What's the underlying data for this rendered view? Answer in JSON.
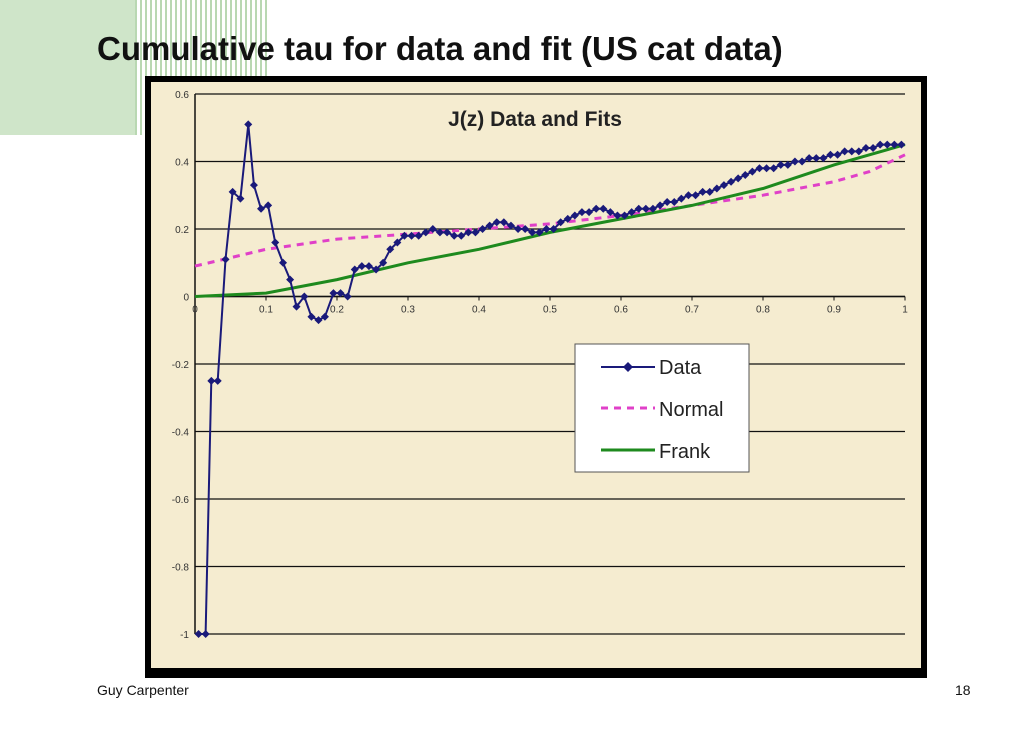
{
  "slide": {
    "title": "Cumulative tau for data and fit (US cat data)",
    "footer_left": "Guy Carpenter",
    "page_number": "18"
  },
  "colors": {
    "deco_green": "#cfe5c9",
    "plot_background": "#f5ecd0",
    "frame": "#000000",
    "data_series": "#1a1a7a",
    "normal_series": "#e040c8",
    "frank_series": "#1e8a1e"
  },
  "chart_data": {
    "type": "line",
    "title": "J(z) Data and Fits",
    "xlabel": "",
    "ylabel": "",
    "xlim": [
      0,
      1
    ],
    "ylim": [
      -1,
      0.6
    ],
    "xticks": [
      0,
      0.1,
      0.2,
      0.3,
      0.4,
      0.5,
      0.6,
      0.7,
      0.8,
      0.9,
      1
    ],
    "xtick_labels": [
      "0",
      "0.1",
      "0.2",
      "0.3",
      "0.4",
      "0.5",
      "0.6",
      "0.7",
      "0.8",
      "0.9",
      "1"
    ],
    "yticks": [
      0.6,
      0.4,
      0.2,
      0,
      -0.2,
      -0.4,
      -0.6,
      -0.8,
      -1
    ],
    "ytick_labels": [
      "0.6",
      "0.4",
      "0.2",
      "0",
      "-0.2",
      "-0.4",
      "-0.6",
      "-0.8",
      "-1"
    ],
    "grid": "horizontal",
    "legend_position": "center-right",
    "series": [
      {
        "name": "Data",
        "style": "line-with-diamond-markers",
        "x": [
          0.005,
          0.015,
          0.023,
          0.032,
          0.043,
          0.053,
          0.064,
          0.075,
          0.083,
          0.093,
          0.103,
          0.113,
          0.124,
          0.134,
          0.143,
          0.154,
          0.164,
          0.174,
          0.183,
          0.195,
          0.205,
          0.215,
          0.225,
          0.235,
          0.245,
          0.255,
          0.265,
          0.275,
          0.285,
          0.295,
          0.305,
          0.315,
          0.325,
          0.335,
          0.345,
          0.355,
          0.365,
          0.375,
          0.385,
          0.395,
          0.405,
          0.415,
          0.425,
          0.435,
          0.445,
          0.455,
          0.465,
          0.475,
          0.485,
          0.495,
          0.505,
          0.515,
          0.525,
          0.535,
          0.545,
          0.555,
          0.565,
          0.575,
          0.585,
          0.595,
          0.605,
          0.615,
          0.625,
          0.635,
          0.645,
          0.655,
          0.665,
          0.675,
          0.685,
          0.695,
          0.705,
          0.715,
          0.725,
          0.735,
          0.745,
          0.755,
          0.765,
          0.775,
          0.785,
          0.795,
          0.805,
          0.815,
          0.825,
          0.835,
          0.845,
          0.855,
          0.865,
          0.875,
          0.885,
          0.895,
          0.905,
          0.915,
          0.925,
          0.935,
          0.945,
          0.955,
          0.965,
          0.975,
          0.985,
          0.995
        ],
        "y": [
          -1.0,
          -1.0,
          -0.25,
          -0.25,
          0.11,
          0.31,
          0.29,
          0.51,
          0.33,
          0.26,
          0.27,
          0.16,
          0.1,
          0.05,
          -0.03,
          0.0,
          -0.06,
          -0.07,
          -0.06,
          0.01,
          0.01,
          0.0,
          0.08,
          0.09,
          0.09,
          0.08,
          0.1,
          0.14,
          0.16,
          0.18,
          0.18,
          0.18,
          0.19,
          0.2,
          0.19,
          0.19,
          0.18,
          0.18,
          0.19,
          0.19,
          0.2,
          0.21,
          0.22,
          0.22,
          0.21,
          0.2,
          0.2,
          0.19,
          0.19,
          0.2,
          0.2,
          0.22,
          0.23,
          0.24,
          0.25,
          0.25,
          0.26,
          0.26,
          0.25,
          0.24,
          0.24,
          0.25,
          0.26,
          0.26,
          0.26,
          0.27,
          0.28,
          0.28,
          0.29,
          0.3,
          0.3,
          0.31,
          0.31,
          0.32,
          0.33,
          0.34,
          0.35,
          0.36,
          0.37,
          0.38,
          0.38,
          0.38,
          0.39,
          0.39,
          0.4,
          0.4,
          0.41,
          0.41,
          0.41,
          0.42,
          0.42,
          0.43,
          0.43,
          0.43,
          0.44,
          0.44,
          0.45,
          0.45,
          0.45,
          0.45
        ]
      },
      {
        "name": "Normal",
        "style": "dashed",
        "x": [
          0,
          0.1,
          0.2,
          0.3,
          0.4,
          0.5,
          0.6,
          0.7,
          0.8,
          0.9,
          0.95,
          1
        ],
        "y": [
          0.09,
          0.14,
          0.17,
          0.185,
          0.2,
          0.215,
          0.24,
          0.27,
          0.3,
          0.34,
          0.37,
          0.42
        ]
      },
      {
        "name": "Frank",
        "style": "solid",
        "x": [
          0,
          0.1,
          0.2,
          0.3,
          0.4,
          0.5,
          0.6,
          0.7,
          0.8,
          0.9,
          1
        ],
        "y": [
          0.0,
          0.01,
          0.05,
          0.1,
          0.14,
          0.19,
          0.23,
          0.27,
          0.32,
          0.39,
          0.45
        ]
      }
    ]
  }
}
